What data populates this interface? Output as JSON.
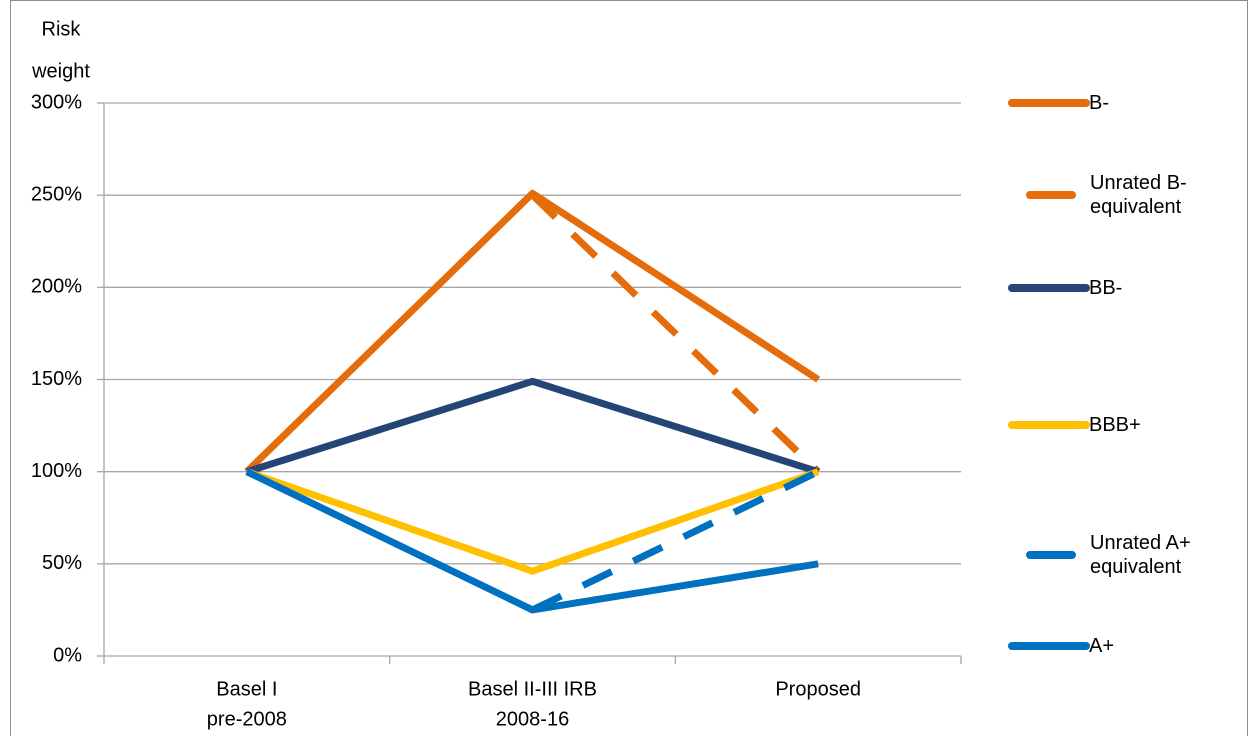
{
  "chart_data": {
    "type": "line",
    "y_label": [
      "Risk",
      "weight"
    ],
    "categories": [
      [
        "Basel I",
        "pre-2008"
      ],
      [
        "Basel II-III IRB",
        "2008-16"
      ],
      [
        "Proposed"
      ]
    ],
    "series": [
      {
        "name": "B-",
        "color": "#e46c0a",
        "dashed": false,
        "values": [
          100,
          251,
          150
        ]
      },
      {
        "name": "Unrated B- equivalent",
        "color": "#e46c0a",
        "dashed": true,
        "values": [
          null,
          250,
          100
        ]
      },
      {
        "name": "BB-",
        "color": "#254577",
        "dashed": false,
        "values": [
          100,
          149,
          100
        ]
      },
      {
        "name": "BBB+",
        "color": "#ffc000",
        "dashed": false,
        "values": [
          100,
          46,
          100
        ]
      },
      {
        "name": "Unrated A+ equivalent",
        "color": "#0070c0",
        "dashed": true,
        "values": [
          null,
          25,
          100
        ]
      },
      {
        "name": "A+",
        "color": "#0070c0",
        "dashed": false,
        "values": [
          100,
          25,
          50
        ]
      }
    ],
    "ylim": [
      0,
      300
    ],
    "yticks": [
      {
        "value": 0,
        "label": "0%"
      },
      {
        "value": 50,
        "label": "50%"
      },
      {
        "value": 100,
        "label": "100%"
      },
      {
        "value": 150,
        "label": "150%"
      },
      {
        "value": 200,
        "label": "200%"
      },
      {
        "value": 250,
        "label": "250%"
      },
      {
        "value": 300,
        "label": "300%"
      }
    ],
    "grid": true,
    "legend": "right"
  }
}
